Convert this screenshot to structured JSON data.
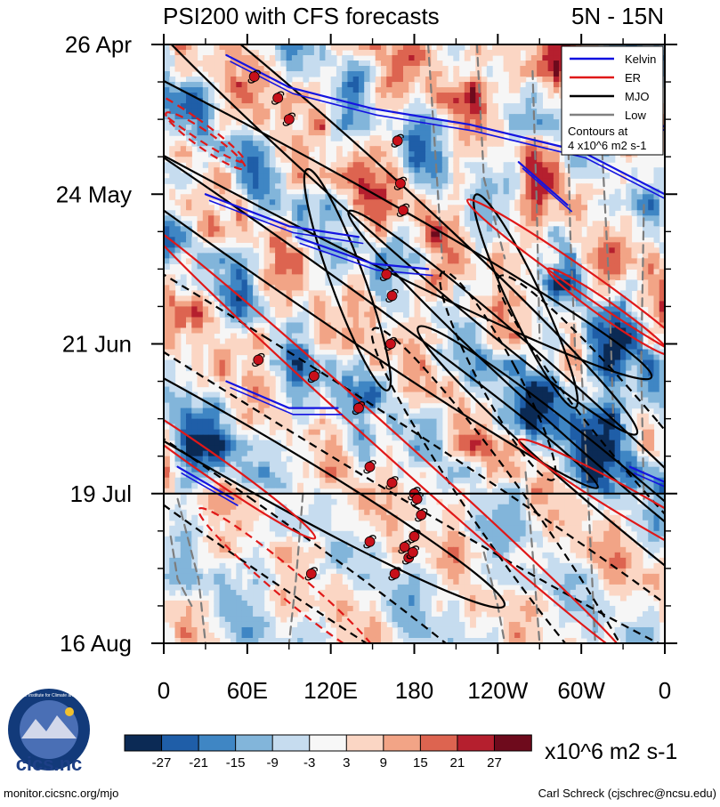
{
  "chart_data": {
    "type": "heatmap",
    "title": "PSI200 with CFS forecasts",
    "region": "5N - 15N",
    "x_ticks": [
      "0",
      "60E",
      "120E",
      "180",
      "120W",
      "60W",
      "0"
    ],
    "x_range_deg": [
      0,
      360
    ],
    "y_ticks": [
      "26 Apr",
      "24 May",
      "21 Jun",
      "19 Jul",
      "16 Aug"
    ],
    "y_range_days": [
      0,
      112
    ],
    "forecast_start_day": 84,
    "legend": {
      "items": [
        {
          "name": "Kelvin",
          "color": "#1010e0"
        },
        {
          "name": "ER",
          "color": "#e01818"
        },
        {
          "name": "MJO",
          "color": "#000000"
        },
        {
          "name": "Low",
          "color": "#808080"
        }
      ],
      "note_line1": "Contours at",
      "note_line2": "4 x10^6 m2 s-1",
      "placement": "top-right"
    },
    "colorbar": {
      "labels": [
        "-27",
        "-21",
        "-15",
        "-9",
        "-3",
        "3",
        "9",
        "15",
        "21",
        "27"
      ],
      "colors": [
        "#0b2a55",
        "#1f5ea8",
        "#3f86c4",
        "#82b5da",
        "#c6dcef",
        "#f7f7f7",
        "#fbd6c4",
        "#f2a486",
        "#dd6450",
        "#b51f2e",
        "#6e0a1c"
      ],
      "units": "x10^6 m2 s-1"
    },
    "storms_lon_day": [
      [
        65,
        6
      ],
      [
        82,
        10
      ],
      [
        90,
        14
      ],
      [
        168,
        18
      ],
      [
        170,
        26
      ],
      [
        172,
        31
      ],
      [
        160,
        43
      ],
      [
        164,
        47
      ],
      [
        68,
        59
      ],
      [
        140,
        68
      ],
      [
        148,
        79
      ],
      [
        164,
        82
      ],
      [
        180,
        84
      ],
      [
        182,
        85
      ],
      [
        185,
        88
      ],
      [
        148,
        93
      ],
      [
        173,
        94
      ],
      [
        176,
        96
      ],
      [
        179,
        95
      ],
      [
        166,
        99
      ],
      [
        108,
        62
      ],
      [
        106,
        99
      ],
      [
        163,
        56
      ],
      [
        180,
        92
      ]
    ],
    "mjo_ellipses_lon_day_rx_ry_rot": [
      [
        45,
        20,
        12,
        90,
        -62
      ],
      [
        60,
        37,
        8,
        80,
        -55
      ],
      [
        132,
        44,
        6,
        22,
        -20
      ],
      [
        140,
        26,
        10,
        70,
        -48
      ],
      [
        45,
        75,
        10,
        60,
        -60
      ],
      [
        260,
        48,
        6,
        22,
        -25
      ],
      [
        290,
        68,
        8,
        55,
        -48
      ],
      [
        330,
        85,
        9,
        50,
        -50
      ]
    ],
    "mjo_dashed_lon_day_rx_ry_rot": [
      [
        60,
        60,
        12,
        110,
        -58
      ],
      [
        50,
        89,
        10,
        70,
        -55
      ],
      [
        240,
        62,
        7,
        22,
        -28
      ],
      [
        250,
        90,
        10,
        45,
        -35
      ],
      [
        340,
        74,
        10,
        40,
        -40
      ]
    ],
    "er_ellipses_lon_day_rx_ry_rot": [
      [
        300,
        44,
        4,
        26,
        -55
      ],
      [
        320,
        50,
        3,
        14,
        -55
      ],
      [
        160,
        74,
        4,
        60,
        -48
      ],
      [
        30,
        78,
        4,
        25,
        -55
      ],
      [
        355,
        89,
        5,
        30,
        -60
      ],
      [
        20,
        15,
        3,
        12,
        -55
      ],
      [
        30,
        18,
        3,
        9,
        -55
      ],
      [
        90,
        101,
        5,
        22,
        -50
      ]
    ],
    "kelvin_segments_lon_day": [
      [
        [
          45,
          2
        ],
        [
          90,
          8
        ],
        [
          150,
          12
        ]
      ],
      [
        [
          150,
          12
        ],
        [
          220,
          15
        ],
        [
          300,
          20
        ],
        [
          360,
          28
        ]
      ],
      [
        [
          30,
          28
        ],
        [
          90,
          34
        ],
        [
          140,
          36
        ]
      ],
      [
        [
          95,
          36
        ],
        [
          150,
          41
        ],
        [
          190,
          42
        ]
      ],
      [
        [
          340,
          12
        ],
        [
          375,
          18
        ]
      ],
      [
        [
          10,
          79
        ],
        [
          50,
          85
        ]
      ],
      [
        [
          45,
          63
        ],
        [
          90,
          68
        ],
        [
          125,
          68
        ]
      ],
      [
        [
          255,
          22
        ],
        [
          290,
          30
        ]
      ],
      [
        [
          335,
          79
        ],
        [
          370,
          83
        ]
      ]
    ],
    "low_lines_lon_day": [
      [
        [
          190,
          0
        ],
        [
          195,
          20
        ],
        [
          200,
          40
        ]
      ],
      [
        [
          225,
          0
        ],
        [
          230,
          25
        ],
        [
          245,
          40
        ]
      ],
      [
        [
          265,
          5
        ],
        [
          268,
          30
        ],
        [
          270,
          55
        ]
      ],
      [
        [
          290,
          10
        ],
        [
          292,
          35
        ],
        [
          296,
          60
        ]
      ],
      [
        [
          315,
          20
        ],
        [
          320,
          45
        ],
        [
          323,
          70
        ]
      ],
      [
        [
          345,
          30
        ],
        [
          343,
          60
        ],
        [
          345,
          85
        ]
      ],
      [
        [
          300,
          60
        ],
        [
          305,
          85
        ],
        [
          310,
          112
        ]
      ],
      [
        [
          10,
          85
        ],
        [
          25,
          100
        ],
        [
          30,
          112
        ]
      ],
      [
        [
          260,
          80
        ],
        [
          265,
          95
        ],
        [
          270,
          112
        ]
      ],
      [
        [
          230,
          95
        ],
        [
          240,
          105
        ],
        [
          245,
          112
        ]
      ],
      [
        [
          100,
          84
        ],
        [
          95,
          100
        ],
        [
          90,
          112
        ]
      ],
      [
        [
          5,
          92
        ],
        [
          10,
          100
        ],
        [
          20,
          105
        ]
      ]
    ]
  },
  "footer": {
    "logo_text": "cics.nc",
    "logo_ring": "Cooperative Institute for Climate and Satellites",
    "website": "monitor.cicsnc.org/mjo",
    "author": "Carl Schreck (cjschrec@ncsu.edu)"
  }
}
